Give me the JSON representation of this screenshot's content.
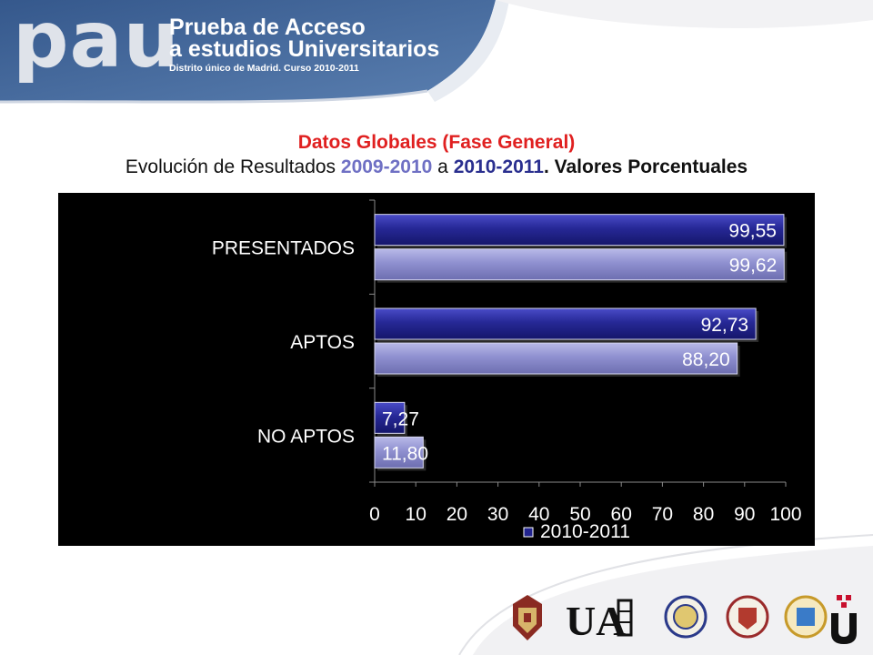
{
  "header": {
    "brand": "pau",
    "line1": "Prueba de Acceso",
    "line2": "a estudios Universitarios",
    "line3": "Distrito único de Madrid. Curso 2010-2011"
  },
  "title": {
    "main": "Datos Globales (Fase General)",
    "sub_prefix": "Evolución de Resultados ",
    "year1": "2009-2010",
    "sub_mid": " a ",
    "year2": "2010-2011",
    "sub_suffix": ". Valores Porcentuales"
  },
  "chart_data": {
    "type": "bar",
    "orientation": "horizontal",
    "categories": [
      "PRESENTADOS",
      "APTOS",
      "NO APTOS"
    ],
    "series": [
      {
        "name": "2010-2011",
        "values": [
          99.55,
          92.73,
          7.27
        ],
        "labels": [
          "99,55",
          "92,73",
          "7,27"
        ],
        "color": "#22248f"
      },
      {
        "values": [
          99.62,
          88.2,
          11.8
        ],
        "labels": [
          "99,62",
          "88,20",
          "11,80"
        ],
        "color": "#8f90d0"
      }
    ],
    "xlim": [
      0,
      100
    ],
    "xticks": [
      "0",
      "10",
      "20",
      "30",
      "40",
      "50",
      "60",
      "70",
      "80",
      "90",
      "100"
    ],
    "legend": "bottom-center",
    "grid": false,
    "background": "#000000"
  },
  "colors": {
    "banner": "#4a6ea0",
    "title_red": "#e02020",
    "year1": "#6f70c4",
    "year2": "#2a2f8f"
  },
  "footer": {
    "logos": [
      "university-crest-icon",
      "uam-logo",
      "seal-icon",
      "seal-icon",
      "seal-icon",
      "uc3m-logo"
    ]
  }
}
